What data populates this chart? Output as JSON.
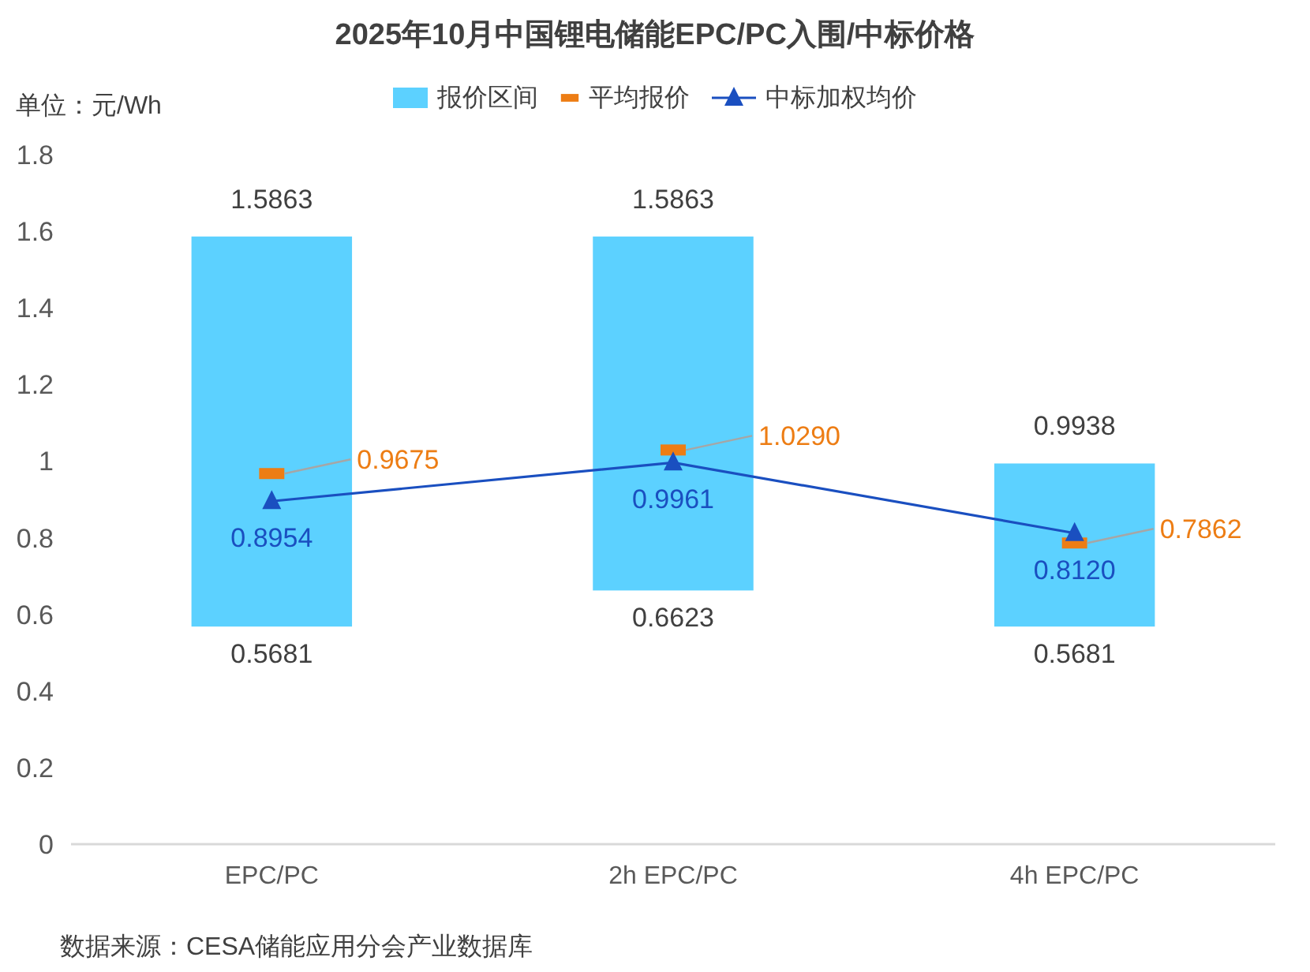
{
  "chart_data": {
    "type": "bar",
    "title": "2025年10月中国锂电储能EPC/PC入围/中标价格",
    "ylabel": "单位：元/Wh",
    "categories": [
      "EPC/PC",
      "2h EPC/PC",
      "4h EPC/PC"
    ],
    "series": [
      {
        "name": "报价区间",
        "type": "bar",
        "color": "#5cd1ff",
        "base": [
          0.5681,
          0.6623,
          0.5681
        ],
        "values": [
          1.0182,
          0.924,
          0.4257
        ]
      },
      {
        "name": "平均报价",
        "type": "scatter",
        "marker": "square",
        "color": "#ed7d14",
        "values": [
          0.9675,
          1.029,
          0.7862
        ],
        "value_labels": [
          "0.9675",
          "1.0290",
          "0.7862"
        ]
      },
      {
        "name": "中标加权均价",
        "type": "line",
        "marker": "triangle",
        "line_style": "solid",
        "color": "#1a4fc0",
        "values": [
          0.8954,
          0.9961,
          0.812
        ],
        "value_labels": [
          "0.8954",
          "0.9961",
          "0.8120"
        ]
      }
    ],
    "ylim": [
      0,
      1.8
    ],
    "yticks": [
      0,
      0.2,
      0.4,
      0.6,
      0.8,
      1,
      1.2,
      1.4,
      1.6,
      1.8
    ],
    "legend": "top",
    "annotations": [
      {
        "text": "1.5863",
        "x": "EPC/PC",
        "y": 1.5863
      },
      {
        "text": "0.5681",
        "x": "EPC/PC",
        "y": 0.5681
      },
      {
        "text": "1.5863",
        "x": "2h EPC/PC",
        "y": 1.5863
      },
      {
        "text": "0.6623",
        "x": "2h EPC/PC",
        "y": 0.6623
      },
      {
        "text": "0.9938",
        "x": "4h EPC/PC",
        "y": 0.9938
      },
      {
        "text": "0.5681",
        "x": "4h EPC/PC",
        "y": 0.5681
      },
      "数据来源：CESA储能应用分会产业数据库"
    ]
  }
}
